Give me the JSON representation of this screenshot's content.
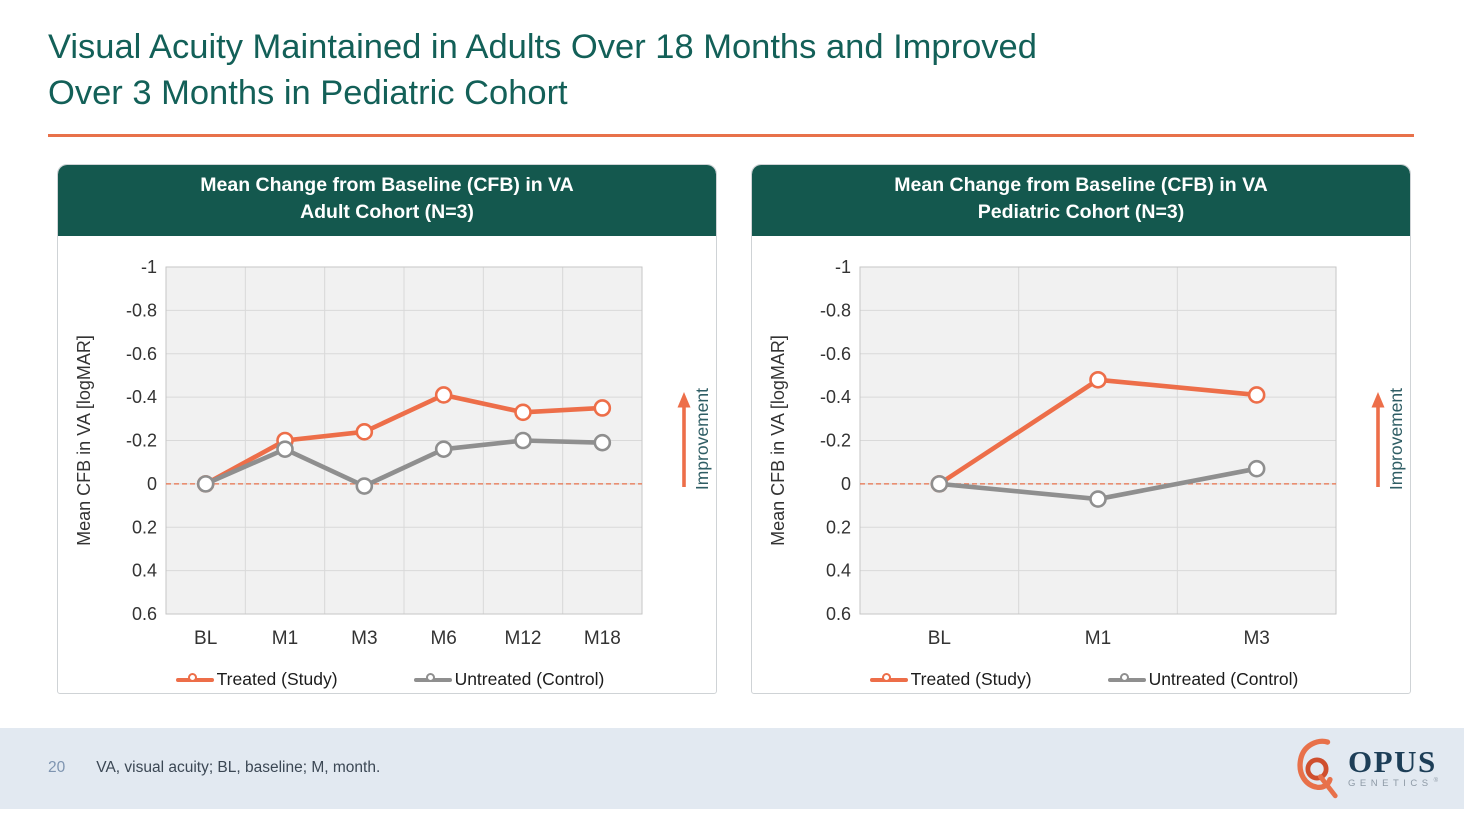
{
  "header": {
    "title_line1": "Visual Acuity Maintained in Adults Over 18 Months and Improved",
    "title_line2": "Over 3 Months in Pediatric Cohort"
  },
  "colors": {
    "teal_title": "#136058",
    "teal_header_bg": "#14584e",
    "orange_accent": "#e8714a",
    "series_orange": "#ed6e49",
    "series_gray": "#8f8f8f",
    "footer_bg": "#e2e9f1",
    "footnote_text": "#3b4754",
    "page_number": "#7e94b0",
    "improvement_text": "#2e5d64",
    "logo_navy": "#1d3e57",
    "logo_gray": "#8e9aa6",
    "plot_bg": "#f1f1f1",
    "gridline": "#d9d9d9",
    "axis_text": "#333333"
  },
  "chart_data": [
    {
      "type": "line",
      "title_line1": "Mean Change from Baseline (CFB) in VA",
      "title_line2": "Adult Cohort (N=3)",
      "categories": [
        "BL",
        "M1",
        "M3",
        "M6",
        "M12",
        "M18"
      ],
      "series": [
        {
          "name": "Treated (Study)",
          "color": "#ed6e49",
          "values": [
            0,
            -0.2,
            -0.24,
            -0.41,
            -0.33,
            -0.35
          ]
        },
        {
          "name": "Untreated (Control)",
          "color": "#8f8f8f",
          "values": [
            0,
            -0.16,
            0.01,
            -0.16,
            -0.2,
            -0.19
          ]
        }
      ],
      "ylabel": "Mean CFB in VA [logMAR]",
      "ylim": [
        -1,
        0.6
      ],
      "y_axis_inverted_note": "negative (improvement) plotted upward; axis runs -1 at top to 0.6 at bottom",
      "yticks": [
        -1,
        -0.8,
        -0.6,
        -0.4,
        -0.2,
        0,
        0.2,
        0.4,
        0.6
      ],
      "ytick_labels": [
        "-1",
        "-0.8",
        "-0.6",
        "-0.4",
        "-0.2",
        "0",
        "0.2",
        "0.4",
        "0.6"
      ],
      "zero_line_color": "#e8714a",
      "zero_line_style": "dashed",
      "grid": true,
      "legend_position": "bottom",
      "annotation": "Improvement"
    },
    {
      "type": "line",
      "title_line1": "Mean Change from Baseline (CFB) in VA",
      "title_line2": "Pediatric Cohort (N=3)",
      "categories": [
        "BL",
        "M1",
        "M3"
      ],
      "series": [
        {
          "name": "Treated (Study)",
          "color": "#ed6e49",
          "values": [
            0,
            -0.48,
            -0.41
          ]
        },
        {
          "name": "Untreated (Control)",
          "color": "#8f8f8f",
          "values": [
            0,
            0.07,
            -0.07
          ]
        }
      ],
      "ylabel": "Mean CFB in VA [logMAR]",
      "ylim": [
        -1,
        0.6
      ],
      "y_axis_inverted_note": "negative (improvement) plotted upward; axis runs -1 at top to 0.6 at bottom",
      "yticks": [
        -1,
        -0.8,
        -0.6,
        -0.4,
        -0.2,
        0,
        0.2,
        0.4,
        0.6
      ],
      "ytick_labels": [
        "-1",
        "-0.8",
        "-0.6",
        "-0.4",
        "-0.2",
        "0",
        "0.2",
        "0.4",
        "0.6"
      ],
      "zero_line_color": "#e8714a",
      "zero_line_style": "dashed",
      "grid": true,
      "legend_position": "bottom",
      "annotation": "Improvement"
    }
  ],
  "footer": {
    "page_number": "20",
    "footnote": "VA, visual acuity; BL, baseline; M, month.",
    "logo": {
      "name": "OPUS",
      "subname": "GENETICS",
      "reg": "®"
    }
  }
}
